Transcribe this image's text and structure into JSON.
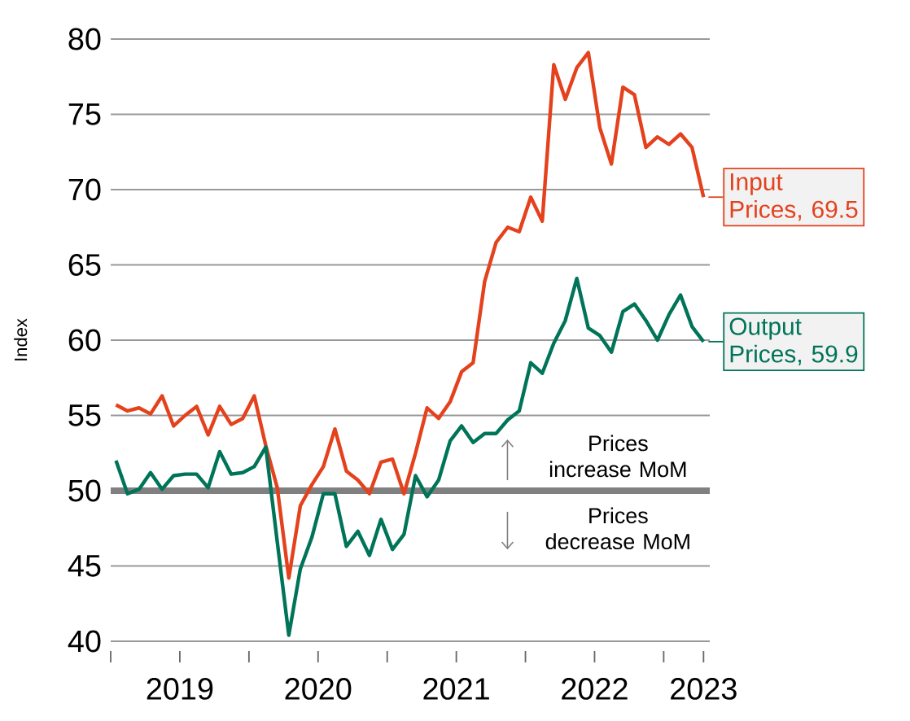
{
  "chart_data": {
    "type": "line",
    "ylabel": "Index",
    "x": [
      "2019-01-15",
      "2019-02-15",
      "2019-03-15",
      "2019-04-15",
      "2019-05-15",
      "2019-06-15",
      "2019-07-15",
      "2019-08-15",
      "2019-09-15",
      "2019-10-15",
      "2019-11-15",
      "2019-12-15",
      "2020-01-15",
      "2020-02-15",
      "2020-03-15",
      "2020-04-15",
      "2020-05-15",
      "2020-06-15",
      "2020-07-15",
      "2020-08-15",
      "2020-09-15",
      "2020-10-15",
      "2020-11-15",
      "2020-12-15",
      "2021-01-15",
      "2021-02-15",
      "2021-03-15",
      "2021-04-15",
      "2021-05-15",
      "2021-06-15",
      "2021-07-15",
      "2021-08-15",
      "2021-09-15",
      "2021-10-15",
      "2021-11-15",
      "2021-12-15",
      "2022-01-15",
      "2022-02-15",
      "2022-03-15",
      "2022-04-15",
      "2022-05-15",
      "2022-06-15",
      "2022-07-15",
      "2022-08-15",
      "2022-09-15",
      "2022-10-15",
      "2022-11-15",
      "2022-12-15",
      "2023-01-15",
      "2023-02-15",
      "2023-03-15",
      "2023-04-15"
    ],
    "legend": "right",
    "series": [
      {
        "name": "Input Prices, 69.5",
        "color": "#e4411d",
        "values": [
          55.7,
          55.3,
          55.5,
          55.1,
          56.3,
          54.3,
          55.0,
          55.6,
          53.7,
          55.6,
          54.4,
          54.8,
          56.3,
          53.0,
          50.2,
          44.2,
          49.0,
          50.4,
          51.6,
          54.1,
          51.3,
          50.7,
          49.8,
          51.9,
          52.1,
          49.8,
          52.5,
          55.5,
          54.8,
          55.9,
          57.9,
          58.5,
          63.9,
          66.5,
          67.5,
          67.2,
          69.5,
          67.9,
          78.3,
          76.0,
          78.1,
          79.1,
          74.1,
          71.7,
          76.8,
          76.3,
          72.8,
          73.5,
          73.0,
          73.7,
          72.8,
          69.5
        ]
      },
      {
        "name": "Output Prices, 59.9",
        "color": "#007459",
        "values": [
          52.0,
          49.8,
          50.1,
          51.2,
          50.1,
          51.0,
          51.1,
          51.1,
          50.2,
          52.6,
          51.1,
          51.2,
          51.6,
          52.9,
          46.6,
          40.4,
          44.8,
          46.9,
          49.8,
          49.8,
          46.3,
          47.3,
          45.7,
          48.1,
          46.1,
          47.1,
          51.0,
          49.6,
          50.7,
          53.3,
          54.3,
          53.2,
          53.8,
          53.8,
          54.7,
          55.3,
          58.5,
          57.8,
          59.8,
          61.3,
          64.1,
          60.8,
          60.3,
          59.2,
          61.9,
          62.4,
          61.3,
          60.0,
          61.7,
          63.0,
          60.9,
          59.9
        ]
      }
    ],
    "xlim": [
      "2019-01-01",
      "2023-05-01"
    ],
    "xticks": [
      {
        "value": "2019-01-01",
        "label": null
      },
      {
        "value": "2020-01-01",
        "label": null
      },
      {
        "value": "2021-01-01",
        "label": null
      },
      {
        "value": "2022-01-01",
        "label": null
      },
      {
        "value": "2023-01-01",
        "label": null
      },
      {
        "value": "2019-07-01",
        "label": "2019"
      },
      {
        "value": "2020-07-01",
        "label": "2020"
      },
      {
        "value": "2021-07-01",
        "label": "2021"
      },
      {
        "value": "2022-07-01",
        "label": "2022"
      },
      {
        "value": "2023-04-15",
        "label": "2023"
      }
    ],
    "ylim": [
      40,
      80
    ],
    "yticks": [
      40,
      45,
      50,
      55,
      60,
      65,
      70,
      75,
      80
    ],
    "grid": "y",
    "ref_lines": [
      {
        "axis": "y",
        "value": 50,
        "color": "#808080"
      }
    ],
    "annotations": [
      "Prices increase MoM",
      "Prices decrease MoM"
    ]
  }
}
